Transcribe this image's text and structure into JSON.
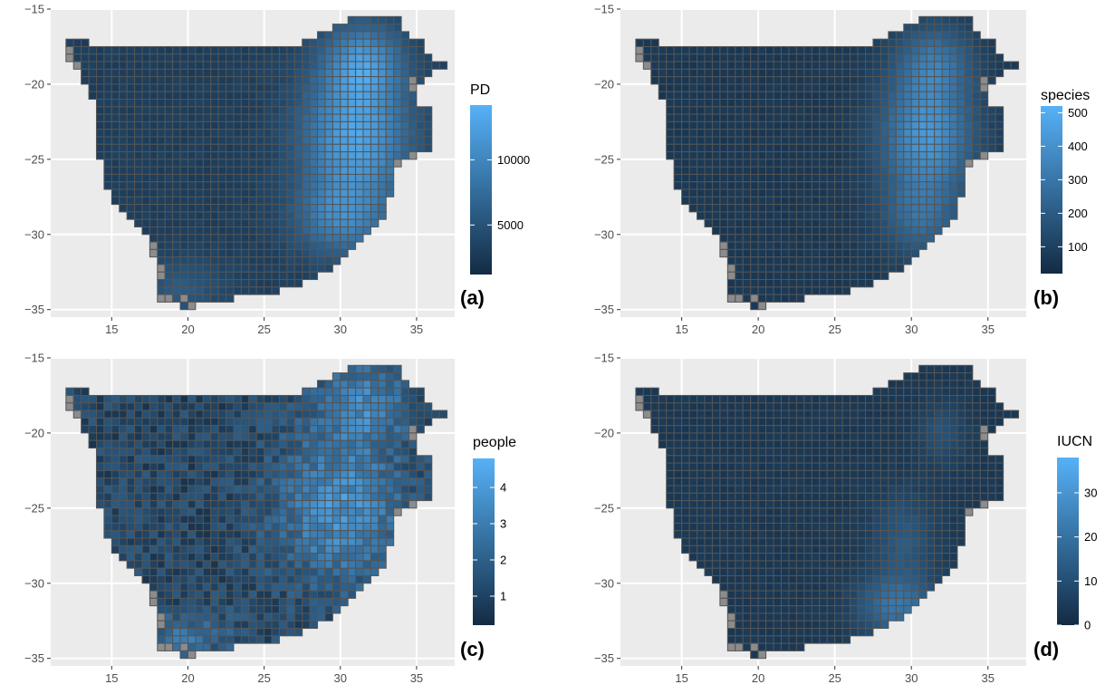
{
  "chart_data": [
    {
      "type": "heatmap",
      "panel_label": "(a)",
      "legend_title": "PD",
      "legend_ticks": [
        5000,
        10000
      ],
      "legend_range": [
        1200,
        14200
      ],
      "xlim": [
        11,
        37.5
      ],
      "ylim": [
        -35.5,
        -15
      ],
      "x_ticks": [
        15,
        20,
        25,
        30,
        35
      ],
      "y_ticks": [
        -15,
        -20,
        -25,
        -30,
        -35
      ],
      "grid": true,
      "pattern": "pd",
      "colormap": [
        "#132B43",
        "#56B1F7"
      ]
    },
    {
      "type": "heatmap",
      "panel_label": "(b)",
      "legend_title": "species",
      "legend_ticks": [
        100,
        200,
        300,
        400,
        500
      ],
      "legend_range": [
        20,
        520
      ],
      "xlim": [
        11,
        37.5
      ],
      "ylim": [
        -35.5,
        -15
      ],
      "x_ticks": [
        15,
        20,
        25,
        30,
        35
      ],
      "y_ticks": [
        -15,
        -20,
        -25,
        -30,
        -35
      ],
      "grid": true,
      "pattern": "species",
      "colormap": [
        "#132B43",
        "#56B1F7"
      ]
    },
    {
      "type": "heatmap",
      "panel_label": "(c)",
      "legend_title": "people",
      "legend_ticks": [
        1,
        2,
        3,
        4
      ],
      "legend_range": [
        0.2,
        4.8
      ],
      "xlim": [
        11,
        37.5
      ],
      "ylim": [
        -35.5,
        -15
      ],
      "x_ticks": [
        15,
        20,
        25,
        30,
        35
      ],
      "y_ticks": [
        -15,
        -20,
        -25,
        -30,
        -35
      ],
      "grid": true,
      "pattern": "people",
      "colormap": [
        "#132B43",
        "#56B1F7"
      ]
    },
    {
      "type": "heatmap",
      "panel_label": "(d)",
      "legend_title": "IUCN",
      "legend_ticks": [
        0,
        10,
        20,
        30
      ],
      "legend_range": [
        0,
        38
      ],
      "xlim": [
        11,
        37.5
      ],
      "ylim": [
        -35.5,
        -15
      ],
      "x_ticks": [
        15,
        20,
        25,
        30,
        35
      ],
      "y_ticks": [
        -15,
        -20,
        -25,
        -30,
        -35
      ],
      "grid": true,
      "pattern": "iucn",
      "colormap": [
        "#132B43",
        "#56B1F7"
      ]
    }
  ],
  "colors": {
    "panel_bg": "#EBEBEB",
    "grid": "#FFFFFF",
    "cell_border": "#555555",
    "missing_cell": "#8C8C8C",
    "low": "#132B43",
    "high": "#56B1F7"
  }
}
